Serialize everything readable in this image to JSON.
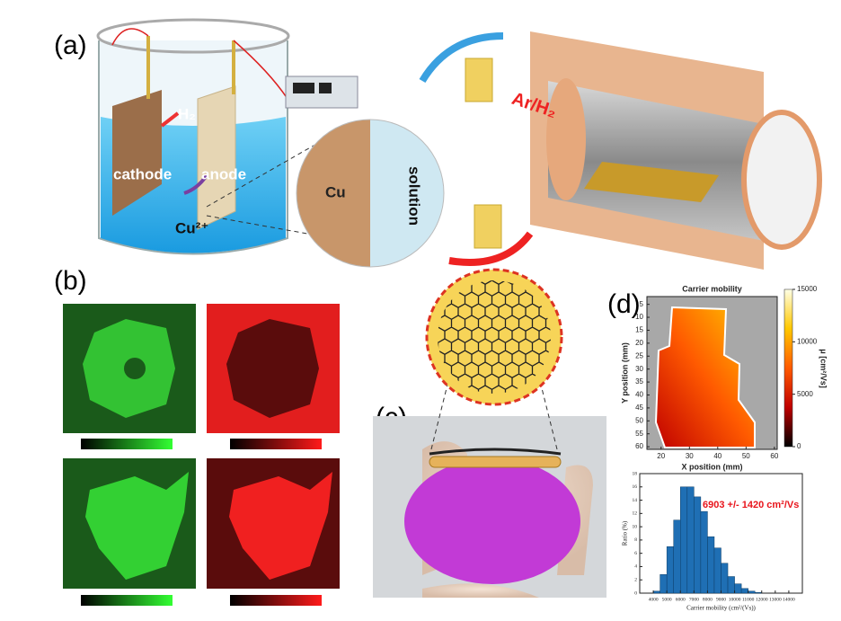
{
  "panels": {
    "a": {
      "label": "(a)",
      "texts": {
        "h2": "H₂",
        "cathode": "cathode",
        "anode": "anode",
        "cu_ion": "Cu²⁺",
        "cu": "Cu",
        "solution": "solution",
        "gas": "Ar/H₂"
      }
    },
    "b": {
      "label": "(b)"
    },
    "c": {
      "label": "(c)"
    },
    "d": {
      "label": "(d)"
    }
  },
  "chart_data": [
    {
      "type": "heatmap",
      "title": "Carrier mobility",
      "x_label": "X position (mm)",
      "y_label": "Y position (mm)",
      "xlim": [
        15,
        61
      ],
      "xticks": [
        20,
        30,
        40,
        50,
        60
      ],
      "ylim": [
        2,
        61
      ],
      "yticks": [
        5,
        10,
        15,
        20,
        25,
        30,
        35,
        40,
        45,
        50,
        55,
        60
      ],
      "colorbar_label": "μ [cm²/Vs]",
      "clim": [
        0,
        15000
      ],
      "cticks": [
        0,
        5000,
        10000,
        15000
      ],
      "colors": [
        "#000000",
        "#c00000",
        "#ff5a00",
        "#ffc800",
        "#ffffe6"
      ]
    },
    {
      "type": "histogram",
      "annotation": "6903 +/- 1420 cm²/Vs",
      "annotation_color": "#e8141b",
      "x_label": "Carrier mobility (cm²/(Vs))",
      "y_label": "Ratio (%)",
      "bins": [
        4000,
        4500,
        5000,
        5500,
        6000,
        6500,
        7000,
        7500,
        8000,
        8500,
        9000,
        9500,
        10000,
        10500,
        11000,
        11500,
        12000
      ],
      "values": [
        0.3,
        2.8,
        7,
        11,
        16,
        16,
        14.5,
        12.3,
        8.5,
        6.8,
        4.5,
        2.5,
        1.4,
        0.7,
        0.3,
        0.1
      ],
      "color": "#1f6fb4",
      "xlim": [
        3000,
        15000
      ],
      "xticks": [
        4000,
        5000,
        6000,
        7000,
        8000,
        9000,
        10000,
        11000,
        12000,
        13000,
        14000
      ],
      "ylim": [
        0,
        18
      ],
      "yticks": [
        0,
        2,
        4,
        6,
        8,
        10,
        12,
        14,
        16,
        18
      ]
    }
  ]
}
